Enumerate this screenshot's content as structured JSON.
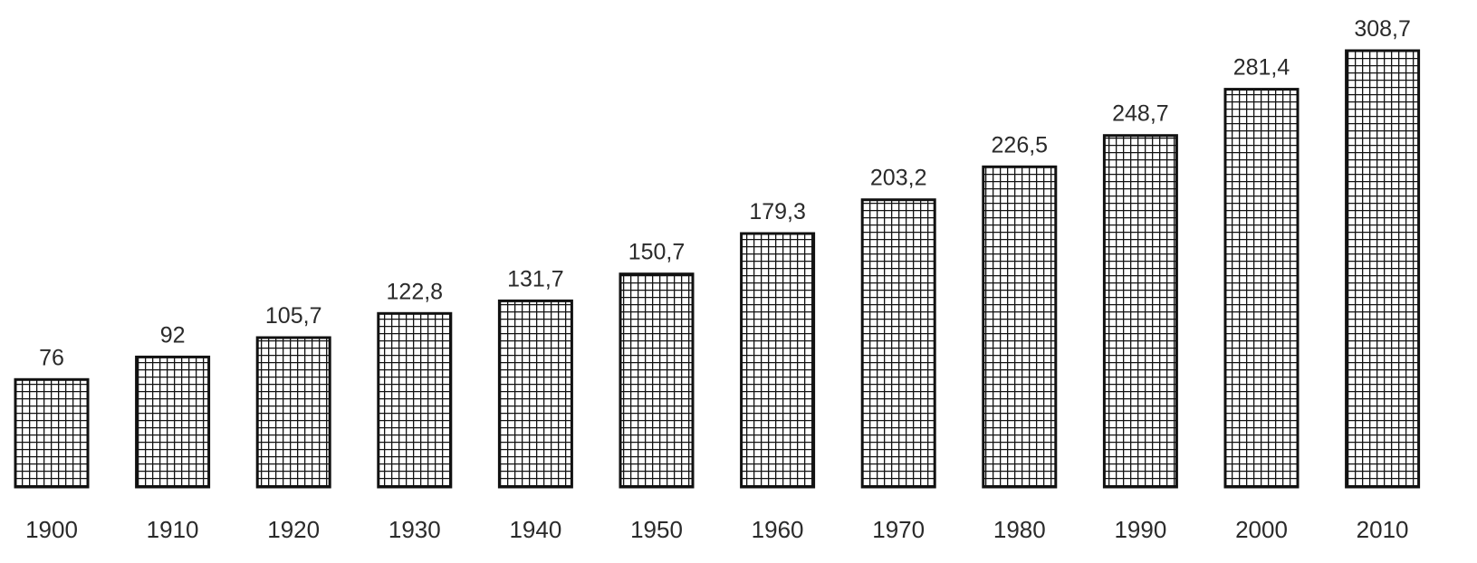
{
  "chart_data": {
    "type": "bar",
    "title": "",
    "xlabel": "",
    "ylabel": "",
    "categories": [
      "1900",
      "1910",
      "1920",
      "1930",
      "1940",
      "1950",
      "1960",
      "1970",
      "1980",
      "1990",
      "2000",
      "2010"
    ],
    "values": [
      76,
      92,
      105.7,
      122.8,
      131.7,
      150.7,
      179.3,
      203.2,
      226.5,
      248.7,
      281.4,
      308.7
    ],
    "value_labels": [
      "76",
      "92",
      "105,7",
      "122,8",
      "131,7",
      "150,7",
      "179,3",
      "203,2",
      "226,5",
      "248,7",
      "281,4",
      "308,7"
    ],
    "ylim": [
      0,
      308.7
    ],
    "grid": false,
    "legend": "none",
    "bar_pattern": "crosshatch grid",
    "colors": {
      "bar_stroke": "#111111",
      "pattern_fill": "#ffffff",
      "text": "#2a2a2a"
    }
  }
}
